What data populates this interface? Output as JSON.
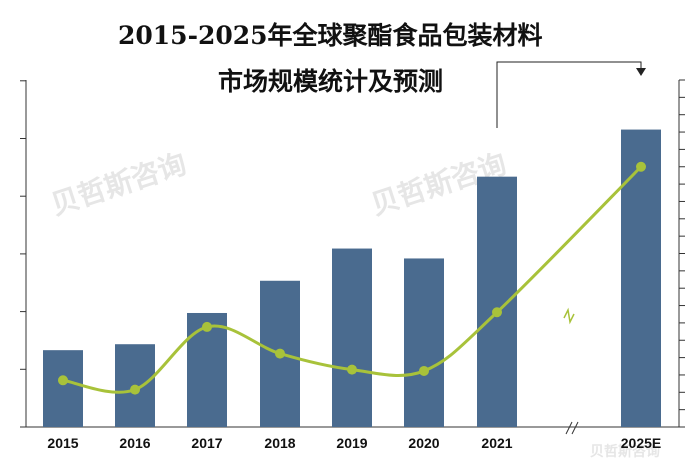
{
  "chart_data": {
    "type": "bar",
    "title_line1": "2015-2025年全球聚酯食品包装材料",
    "title_line2": "市场规模统计及预测",
    "categories": [
      "2015",
      "2016",
      "2017",
      "2018",
      "2019",
      "2020",
      "2021",
      "2025E"
    ],
    "series": [
      {
        "kind": "bar",
        "values": [
          1.55,
          1.67,
          2.3,
          2.95,
          3.6,
          3.4,
          5.05,
          6.0
        ],
        "color": "#4a6b8f"
      },
      {
        "kind": "line",
        "values": [
          3.5,
          2.8,
          7.5,
          5.5,
          4.3,
          4.2,
          8.6,
          19.5
        ],
        "color": "#a8c23a"
      }
    ],
    "bar_ylim": [
      0,
      7
    ],
    "line_ylim": [
      0,
      26
    ],
    "axis_break": "2021-2025E",
    "grid": false,
    "legend": "none",
    "watermark": "贝哲斯咨询"
  }
}
